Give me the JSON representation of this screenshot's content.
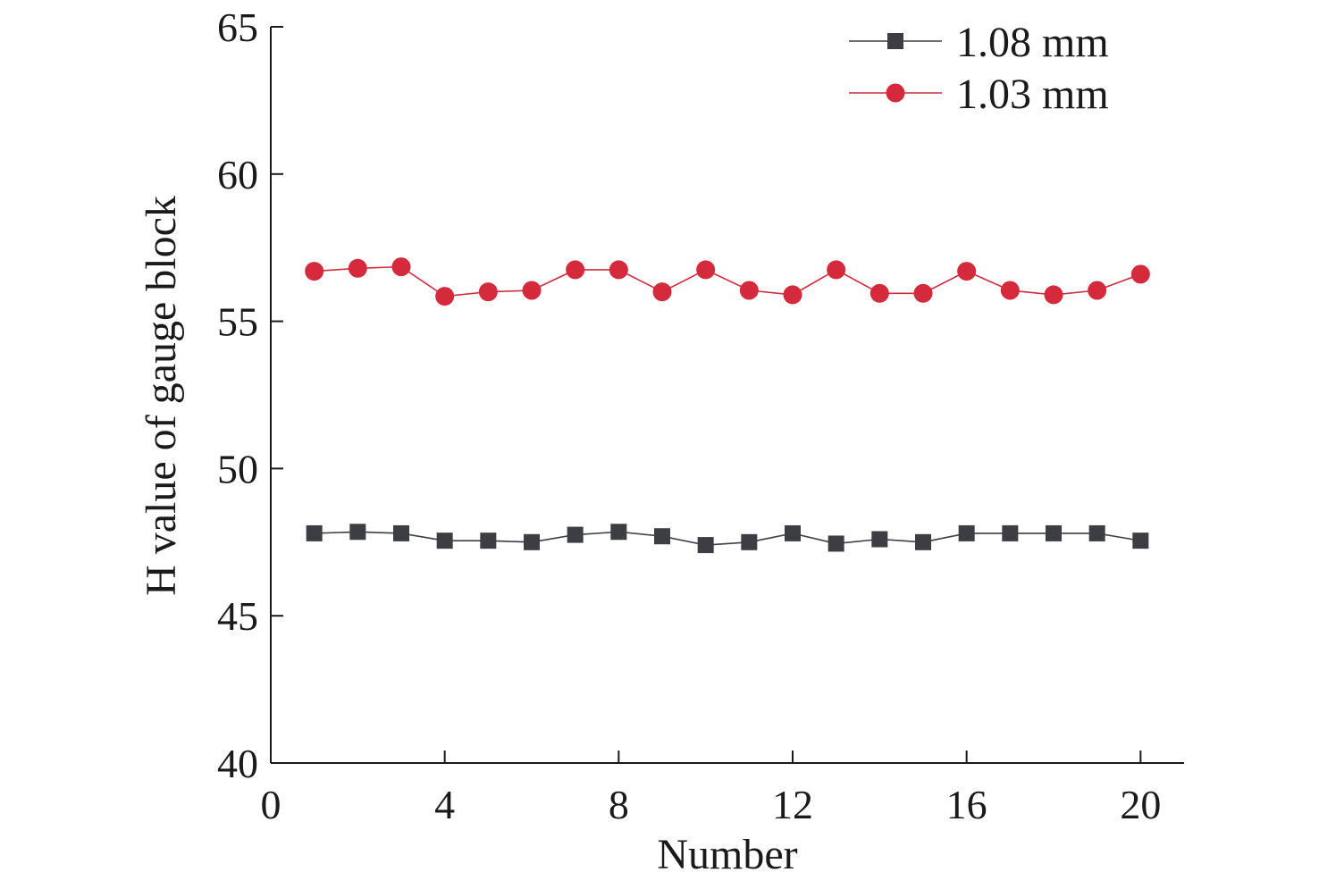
{
  "chart_data": {
    "type": "line",
    "xlabel": "Number",
    "ylabel": "H value of gauge block",
    "xlim": [
      0,
      21
    ],
    "ylim": [
      40,
      65
    ],
    "xticks": [
      0,
      4,
      8,
      12,
      16,
      20
    ],
    "yticks": [
      40,
      45,
      50,
      55,
      60,
      65
    ],
    "grid": false,
    "legend_position": "top-right",
    "x": [
      1,
      2,
      3,
      4,
      5,
      6,
      7,
      8,
      9,
      10,
      11,
      12,
      13,
      14,
      15,
      16,
      17,
      18,
      19,
      20
    ],
    "series": [
      {
        "name": "1.08 mm",
        "marker": "square",
        "color": "#3d3d44",
        "values": [
          47.8,
          47.85,
          47.8,
          47.55,
          47.55,
          47.5,
          47.75,
          47.85,
          47.7,
          47.4,
          47.5,
          47.8,
          47.45,
          47.6,
          47.5,
          47.8,
          47.8,
          47.8,
          47.8,
          47.55
        ]
      },
      {
        "name": "1.03 mm",
        "marker": "circle",
        "color": "#d42a3c",
        "values": [
          56.7,
          56.8,
          56.85,
          55.85,
          56.0,
          56.05,
          56.75,
          56.75,
          56.0,
          56.75,
          56.05,
          55.9,
          56.75,
          55.95,
          55.95,
          56.7,
          56.05,
          55.9,
          56.05,
          56.6
        ]
      }
    ]
  }
}
